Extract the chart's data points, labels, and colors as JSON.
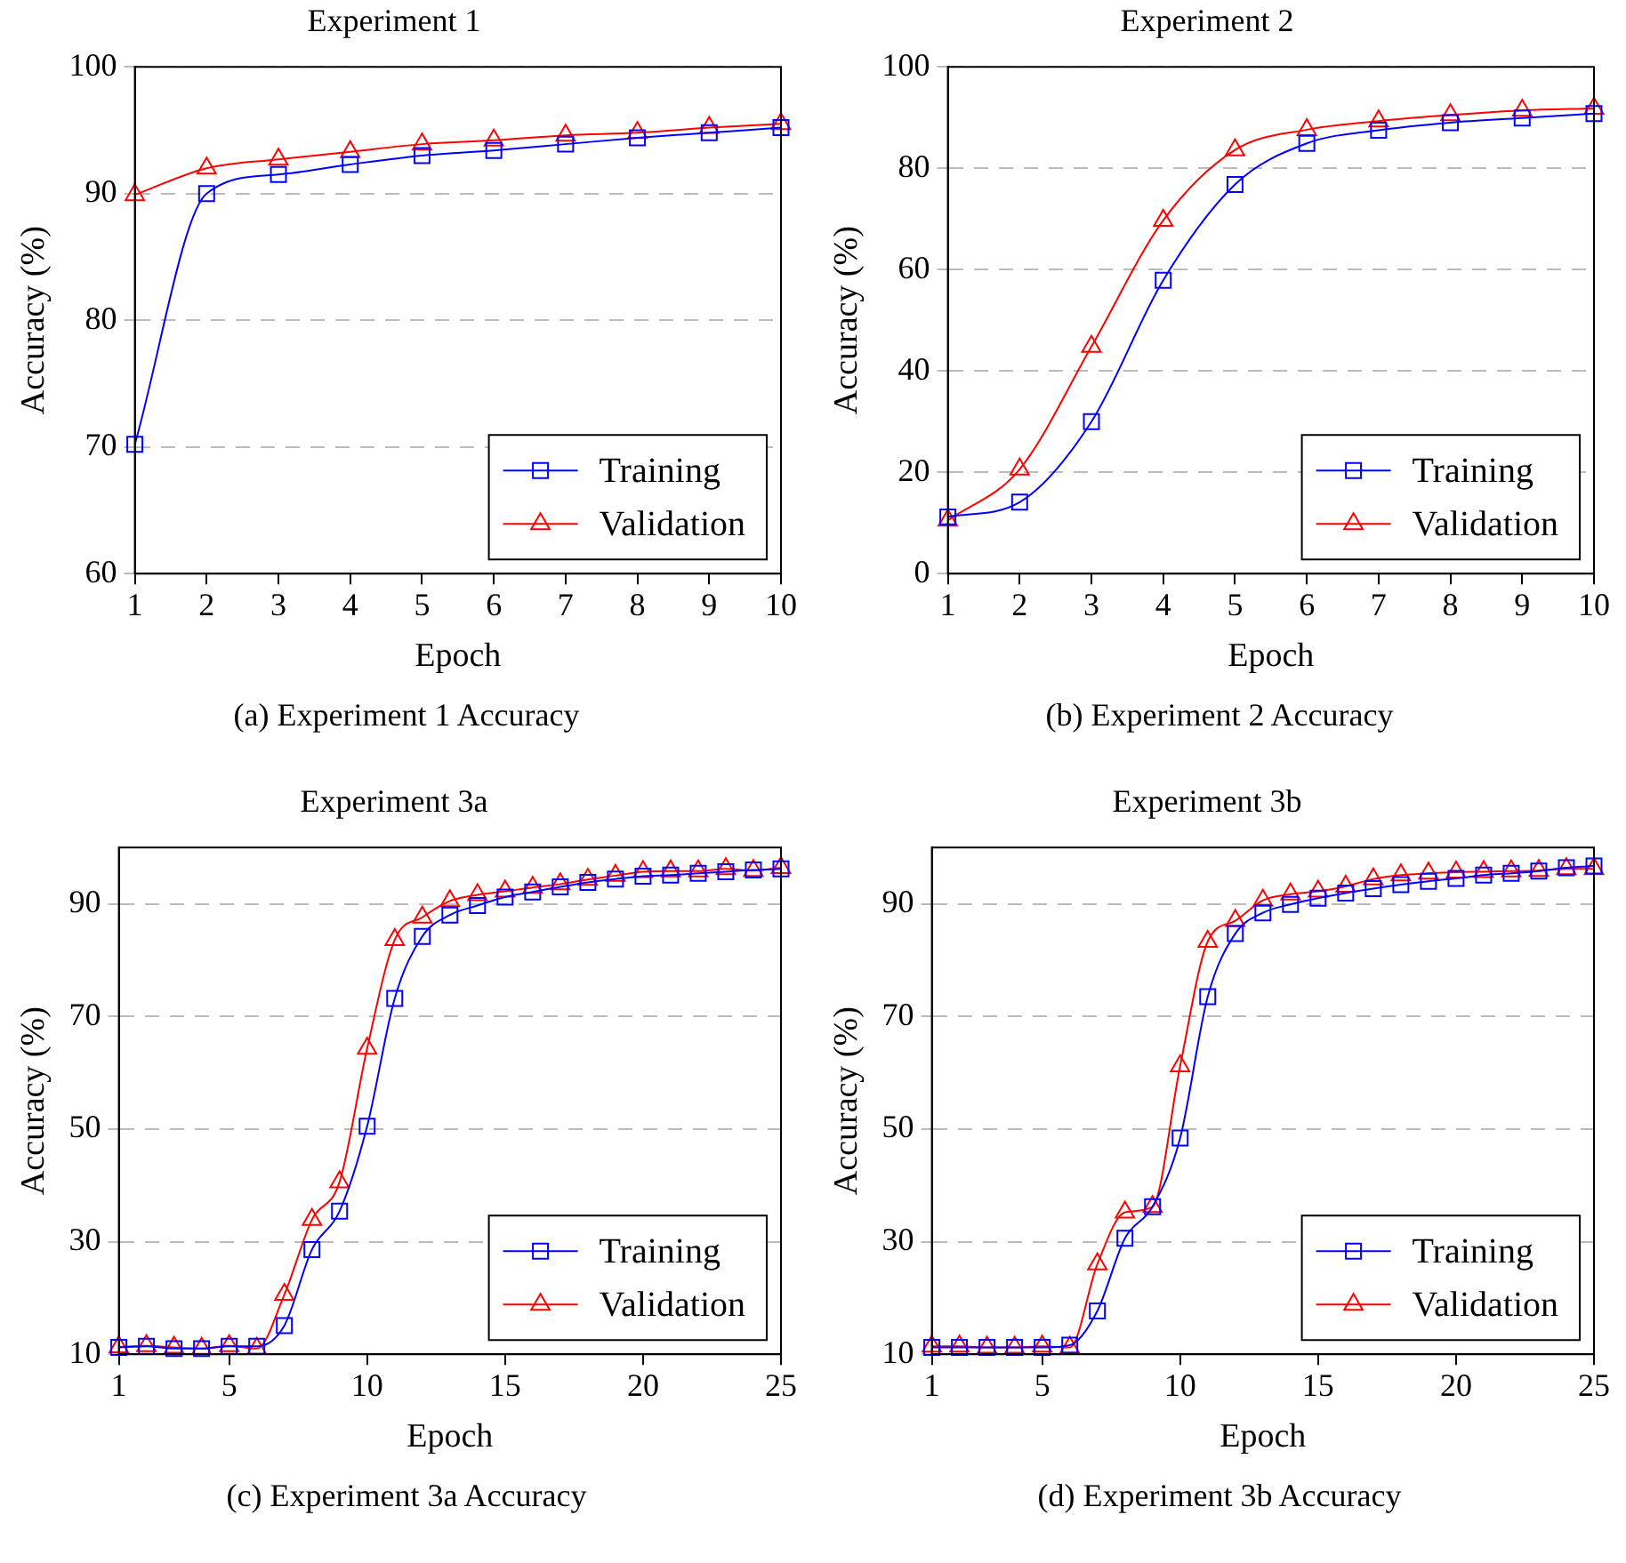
{
  "chart_data": [
    {
      "type": "line",
      "title": "Experiment 1",
      "xlabel": "Epoch",
      "ylabel": "Accuracy (%)",
      "annotations": [
        "(a) Experiment 1 Accuracy"
      ],
      "x": [
        1,
        2,
        3,
        4,
        5,
        6,
        7,
        8,
        9,
        10
      ],
      "xlim": [
        1,
        10
      ],
      "xticks": [
        1,
        2,
        3,
        4,
        5,
        6,
        7,
        8,
        9,
        10
      ],
      "ylim": [
        60,
        100
      ],
      "yticks": [
        60,
        70,
        80,
        90,
        100
      ],
      "grid": "y",
      "legend": "bottom right",
      "series": [
        {
          "name": "Training",
          "color": "#0000ff",
          "marker": "square",
          "values": [
            70.2,
            90.0,
            91.5,
            92.3,
            93.0,
            93.4,
            93.9,
            94.4,
            94.8,
            95.2
          ]
        },
        {
          "name": "Validation",
          "color": "#ff0000",
          "marker": "triangle",
          "values": [
            89.9,
            92.0,
            92.7,
            93.3,
            93.9,
            94.2,
            94.6,
            94.8,
            95.2,
            95.5
          ]
        }
      ]
    },
    {
      "type": "line",
      "title": "Experiment 2",
      "xlabel": "Epoch",
      "ylabel": "Accuracy (%)",
      "annotations": [
        "(b) Experiment 2 Accuracy"
      ],
      "x": [
        1,
        2,
        3,
        4,
        5,
        6,
        7,
        8,
        9,
        10
      ],
      "xlim": [
        1,
        10
      ],
      "xticks": [
        1,
        2,
        3,
        4,
        5,
        6,
        7,
        8,
        9,
        10
      ],
      "ylim": [
        0,
        100
      ],
      "yticks": [
        0,
        20,
        40,
        60,
        80,
        100
      ],
      "grid": "y",
      "legend": "bottom right",
      "series": [
        {
          "name": "Training",
          "color": "#0000ff",
          "marker": "square",
          "values": [
            11.2,
            14.1,
            30.0,
            57.9,
            76.8,
            84.9,
            87.5,
            89.0,
            89.9,
            90.8
          ]
        },
        {
          "name": "Validation",
          "color": "#ff0000",
          "marker": "triangle",
          "values": [
            10.5,
            20.6,
            44.8,
            69.7,
            83.6,
            87.6,
            89.3,
            90.5,
            91.4,
            91.8
          ]
        }
      ]
    },
    {
      "type": "line",
      "title": "Experiment 3a",
      "xlabel": "Epoch",
      "ylabel": "Accuracy (%)",
      "annotations": [
        "(c) Experiment 3a Accuracy"
      ],
      "x": [
        1,
        2,
        3,
        4,
        5,
        6,
        7,
        8,
        9,
        10,
        11,
        12,
        13,
        14,
        15,
        16,
        17,
        18,
        19,
        20,
        21,
        22,
        23,
        24,
        25
      ],
      "xlim": [
        1,
        25
      ],
      "xticks": [
        1,
        5,
        10,
        15,
        20,
        25
      ],
      "ylim": [
        10,
        100
      ],
      "yticks": [
        10,
        30,
        50,
        70,
        90
      ],
      "grid": "y",
      "legend": "bottom right",
      "series": [
        {
          "name": "Training",
          "color": "#0000ff",
          "marker": "square",
          "values": [
            11.2,
            11.4,
            11.0,
            11.0,
            11.4,
            11.4,
            15.1,
            28.6,
            35.4,
            50.5,
            73.2,
            84.2,
            88.0,
            89.7,
            91.2,
            92.1,
            93.0,
            93.8,
            94.4,
            94.9,
            95.1,
            95.4,
            95.7,
            96.0,
            96.2
          ]
        },
        {
          "name": "Validation",
          "color": "#ff0000",
          "marker": "triangle",
          "values": [
            11.3,
            11.5,
            11.2,
            11.0,
            11.5,
            11.0,
            20.6,
            33.9,
            40.6,
            64.3,
            83.6,
            87.6,
            90.5,
            91.6,
            92.2,
            92.9,
            93.5,
            94.3,
            95.0,
            95.7,
            95.8,
            95.8,
            96.2,
            95.9,
            96.4
          ]
        }
      ]
    },
    {
      "type": "line",
      "title": "Experiment 3b",
      "xlabel": "Epoch",
      "ylabel": "Accuracy (%)",
      "annotations": [
        "(d) Experiment 3b Accuracy"
      ],
      "x": [
        1,
        2,
        3,
        4,
        5,
        6,
        7,
        8,
        9,
        10,
        11,
        12,
        13,
        14,
        15,
        16,
        17,
        18,
        19,
        20,
        21,
        22,
        23,
        24,
        25
      ],
      "xlim": [
        1,
        25
      ],
      "xticks": [
        1,
        5,
        10,
        15,
        20,
        25
      ],
      "ylim": [
        10,
        100
      ],
      "yticks": [
        10,
        30,
        50,
        70,
        90
      ],
      "grid": "y",
      "legend": "bottom right",
      "series": [
        {
          "name": "Training",
          "color": "#0000ff",
          "marker": "square",
          "values": [
            11.2,
            11.2,
            11.2,
            11.2,
            11.2,
            11.6,
            17.7,
            30.6,
            36.2,
            48.4,
            73.5,
            84.7,
            88.4,
            89.9,
            91.0,
            91.9,
            92.7,
            93.4,
            94.0,
            94.5,
            95.1,
            95.4,
            95.8,
            96.4,
            96.7
          ]
        },
        {
          "name": "Validation",
          "color": "#ff0000",
          "marker": "triangle",
          "values": [
            11.4,
            11.4,
            11.2,
            11.2,
            11.4,
            11.2,
            26.0,
            35.2,
            36.2,
            61.2,
            83.3,
            87.0,
            90.6,
            91.7,
            92.2,
            93.1,
            94.4,
            95.1,
            95.4,
            95.6,
            95.7,
            95.8,
            95.9,
            96.2,
            96.2
          ]
        }
      ]
    }
  ]
}
